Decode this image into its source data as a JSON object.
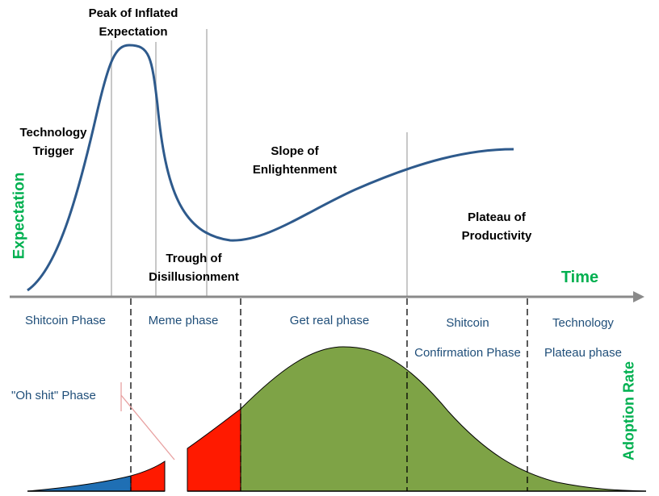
{
  "hype_cycle": {
    "stages": {
      "technology_trigger": [
        "Technology",
        "Trigger"
      ],
      "peak": [
        "Peak of Inflated",
        "Expectation"
      ],
      "trough": [
        "Trough of",
        "Disillusionment"
      ],
      "slope": [
        "Slope of",
        "Enlightenment"
      ],
      "plateau": [
        "Plateau of",
        "Productivity"
      ]
    },
    "y_axis_label": "Expectation",
    "x_axis_label": "Time"
  },
  "adoption": {
    "y_axis_label": "Adoption Rate",
    "phases": {
      "shitcoin": "Shitcoin Phase",
      "meme": "Meme phase",
      "get_real": "Get real phase",
      "confirmation": [
        "Shitcoin",
        "Confirmation Phase"
      ],
      "technology_plateau": [
        "Technology",
        "Plateau phase"
      ],
      "oh_shit": "\"Oh shit\" Phase"
    }
  },
  "colors": {
    "curve": "#2e5a8c",
    "axis_label": "#00b050",
    "phase_text": "#1f4e79",
    "blue_fill": "#1f6fb4",
    "red_fill": "#ff1a00",
    "green_fill": "#7ea346",
    "gridline": "#c8c8c8",
    "axis_arrow": "#8a8a8a"
  }
}
